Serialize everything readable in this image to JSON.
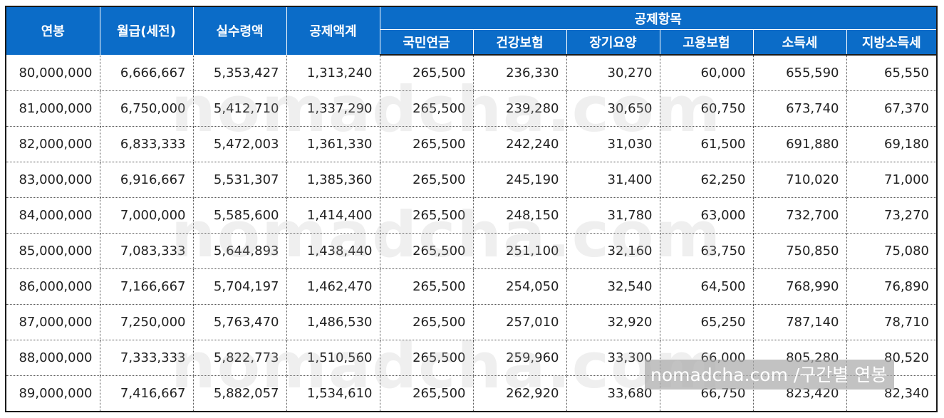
{
  "headers": {
    "annual_salary": "연봉",
    "monthly_gross": "월급(세전)",
    "net_pay": "실수령액",
    "total_deductions": "공제액계",
    "deduction_items": "공제항목",
    "national_pension": "국민연금",
    "health_insurance": "건강보험",
    "long_term_care": "장기요양",
    "employment_insurance": "고용보험",
    "income_tax": "소득세",
    "local_income_tax": "지방소득세"
  },
  "rows": [
    [
      "80,000,000",
      "6,666,667",
      "5,353,427",
      "1,313,240",
      "265,500",
      "236,330",
      "30,270",
      "60,000",
      "655,590",
      "65,550"
    ],
    [
      "81,000,000",
      "6,750,000",
      "5,412,710",
      "1,337,290",
      "265,500",
      "239,280",
      "30,650",
      "60,750",
      "673,740",
      "67,370"
    ],
    [
      "82,000,000",
      "6,833,333",
      "5,472,003",
      "1,361,330",
      "265,500",
      "242,240",
      "31,030",
      "61,500",
      "691,880",
      "69,180"
    ],
    [
      "83,000,000",
      "6,916,667",
      "5,531,307",
      "1,385,360",
      "265,500",
      "245,190",
      "31,400",
      "62,250",
      "710,020",
      "71,000"
    ],
    [
      "84,000,000",
      "7,000,000",
      "5,585,600",
      "1,414,400",
      "265,500",
      "248,150",
      "31,780",
      "63,000",
      "732,700",
      "73,270"
    ],
    [
      "85,000,000",
      "7,083,333",
      "5,644,893",
      "1,438,440",
      "265,500",
      "251,100",
      "32,160",
      "63,750",
      "750,850",
      "75,080"
    ],
    [
      "86,000,000",
      "7,166,667",
      "5,704,197",
      "1,462,470",
      "265,500",
      "254,050",
      "32,540",
      "64,500",
      "768,990",
      "76,890"
    ],
    [
      "87,000,000",
      "7,250,000",
      "5,763,470",
      "1,486,530",
      "265,500",
      "257,010",
      "32,920",
      "65,250",
      "787,140",
      "78,710"
    ],
    [
      "88,000,000",
      "7,333,333",
      "5,822,773",
      "1,510,560",
      "265,500",
      "259,960",
      "33,300",
      "66,000",
      "805,280",
      "80,520"
    ],
    [
      "89,000,000",
      "7,416,667",
      "5,882,057",
      "1,534,610",
      "265,500",
      "262,920",
      "33,680",
      "66,750",
      "823,420",
      "82,340"
    ]
  ],
  "watermark": "nomadcha.com",
  "caption": "nomadcha.com /구간별 연봉",
  "colors": {
    "header_bg": "#0b6cc8",
    "header_text": "#ffffff"
  }
}
